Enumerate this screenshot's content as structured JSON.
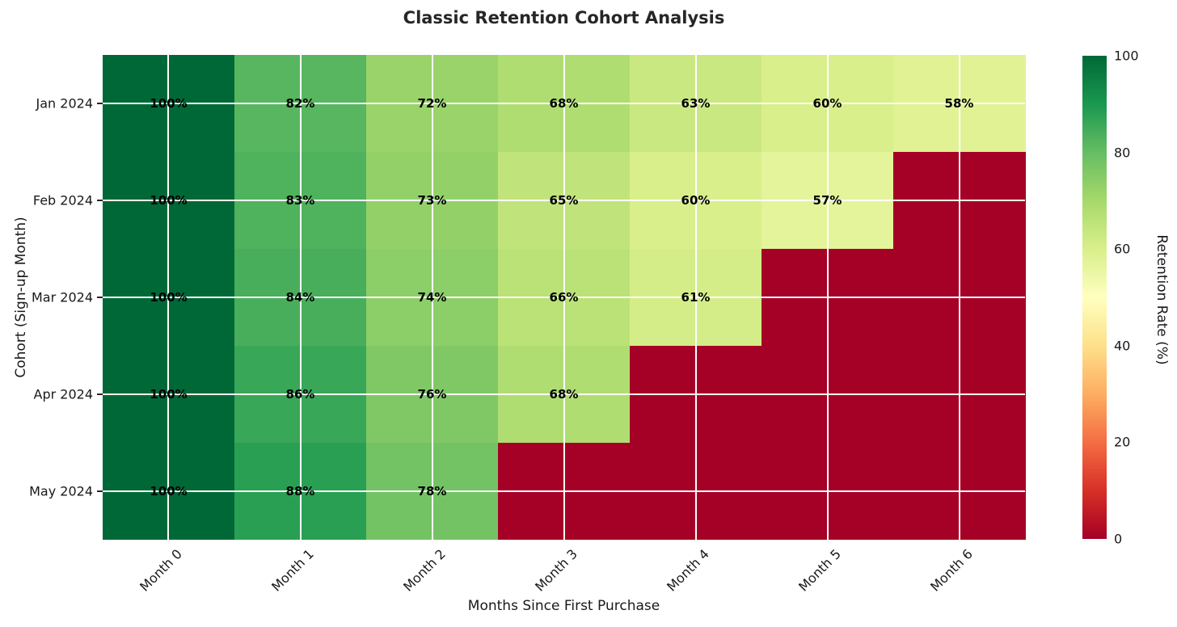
{
  "title": "Classic Retention Cohort Analysis",
  "chart_data": {
    "type": "heatmap",
    "title": "Classic Retention Cohort Analysis",
    "xlabel": "Months Since First Purchase",
    "ylabel": "Cohort (Sign-up Month)",
    "x_categories": [
      "Month 0",
      "Month 1",
      "Month 2",
      "Month 3",
      "Month 4",
      "Month 5",
      "Month 6"
    ],
    "y_categories": [
      "Jan 2024",
      "Feb 2024",
      "Mar 2024",
      "Apr 2024",
      "May 2024"
    ],
    "values": [
      [
        100,
        82,
        72,
        68,
        63,
        60,
        58
      ],
      [
        100,
        83,
        73,
        65,
        60,
        57,
        null
      ],
      [
        100,
        84,
        74,
        66,
        61,
        null,
        null
      ],
      [
        100,
        86,
        76,
        68,
        null,
        null,
        null
      ],
      [
        100,
        88,
        78,
        null,
        null,
        null,
        null
      ]
    ],
    "cell_label_suffix": "%",
    "missing_value_fill": 0,
    "grid": true,
    "grid_color": "#ffffff",
    "colorbar": {
      "label": "Retention Rate (%)",
      "min": 0,
      "max": 100,
      "ticks": [
        100,
        80,
        60,
        40,
        20,
        0
      ]
    },
    "colormap": {
      "name": "RdYlGn",
      "anchors": [
        "#a50026",
        "#d73027",
        "#f46d43",
        "#fdae61",
        "#fee08b",
        "#ffffbf",
        "#d9ef8b",
        "#a6d96a",
        "#66bd63",
        "#1a9850",
        "#006837"
      ]
    }
  }
}
